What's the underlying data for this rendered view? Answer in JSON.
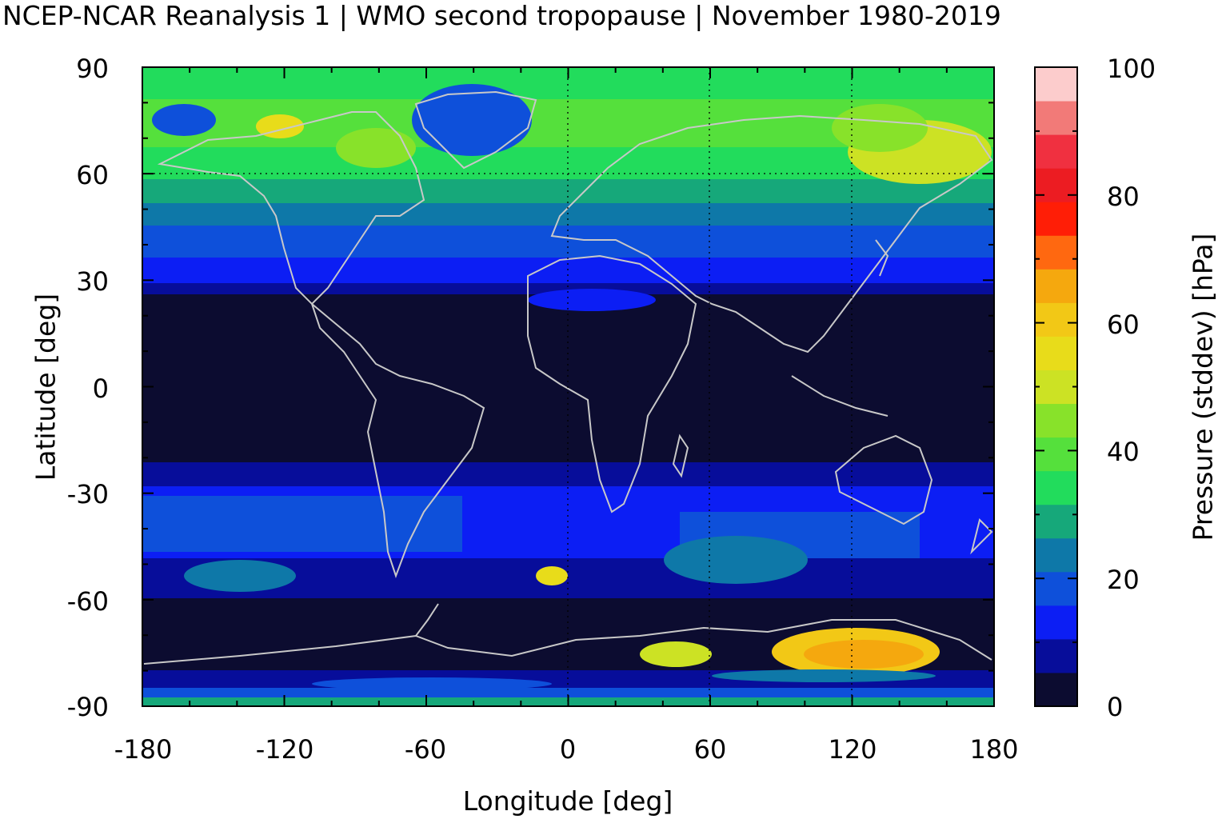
{
  "title": "NCEP-NCAR Reanalysis 1 | WMO second tropopause | November 1980-2019",
  "chart_data": {
    "type": "heatmap",
    "title": "NCEP-NCAR Reanalysis 1 | WMO second tropopause | November 1980-2019",
    "xlabel": "Longitude [deg]",
    "ylabel": "Latitude [deg]",
    "colorbar_label": "Pressure (stddev) [hPa]",
    "xlim": [
      -180,
      180
    ],
    "ylim": [
      -90,
      90
    ],
    "clim": [
      0,
      100
    ],
    "xticks": [
      "-180",
      "-120",
      "-60",
      "0",
      "60",
      "120",
      "180"
    ],
    "yticks": [
      "90",
      "60",
      "30",
      "0",
      "-30",
      "-60",
      "-90"
    ],
    "cbticks": [
      "100",
      "80",
      "60",
      "40",
      "20",
      "0"
    ],
    "grid": "dotted at 60°N and 60°E / 120°E",
    "colormap_steps": [
      "#0c0c30",
      "#070d9a",
      "#0c1ef4",
      "#0e50da",
      "#0e78a8",
      "#16a87a",
      "#22dc5c",
      "#55e03c",
      "#88e22a",
      "#cce224",
      "#e8dc1a",
      "#f2c816",
      "#f5a80e",
      "#ff6810",
      "#ff1e06",
      "#ec1c22",
      "#f03040",
      "#f27a78",
      "#fccccc"
    ],
    "description_zones": [
      {
        "lat": [
          60,
          90
        ],
        "value_range": [
          20,
          45
        ]
      },
      {
        "lat": [
          30,
          60
        ],
        "value_range": [
          8,
          25
        ]
      },
      {
        "lat": [
          -30,
          30
        ],
        "value_range": [
          0,
          5
        ]
      },
      {
        "lat": [
          -60,
          -30
        ],
        "value_range": [
          5,
          40
        ]
      },
      {
        "lat": [
          -80,
          -60
        ],
        "value_range": [
          0,
          70
        ]
      }
    ]
  },
  "icons": {
    "coastlines": "world-coastline-outline"
  }
}
